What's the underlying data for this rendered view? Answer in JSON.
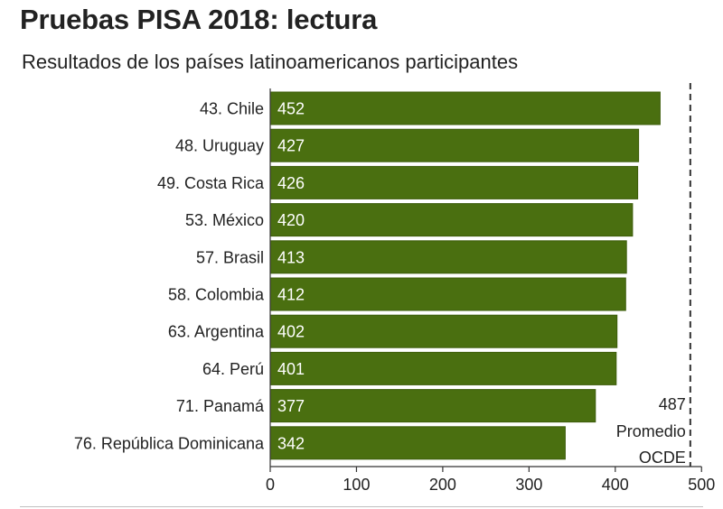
{
  "title": "Pruebas PISA 2018: lectura",
  "subtitle": "Resultados de los países latinoamericanos participantes",
  "colors": {
    "bar": "#4a6f10",
    "bar_edge": "#3c5c0a",
    "bar_text": "#ffffff",
    "axis": "#333333",
    "text": "#222222"
  },
  "chart_data": {
    "type": "bar",
    "orientation": "horizontal",
    "categories": [
      "43. Chile",
      "48. Uruguay",
      "49. Costa Rica",
      "53. México",
      "57. Brasil",
      "58. Colombia",
      "63. Argentina",
      "64. Perú",
      "71. Panamá",
      "76. República Dominicana"
    ],
    "values": [
      452,
      427,
      426,
      420,
      413,
      412,
      402,
      401,
      377,
      342
    ],
    "data_labels": [
      "452",
      "427",
      "426",
      "420",
      "413",
      "412",
      "402",
      "401",
      "377",
      "342"
    ],
    "xlim": [
      0,
      500
    ],
    "xticks": [
      0,
      100,
      200,
      300,
      400,
      500
    ],
    "xtick_labels": [
      "0",
      "100",
      "200",
      "300",
      "400",
      "500"
    ],
    "grid": false,
    "reference_line": {
      "value": 487,
      "style": "dashed",
      "label_lines": [
        "487",
        "Promedio",
        "OCDE"
      ]
    }
  }
}
